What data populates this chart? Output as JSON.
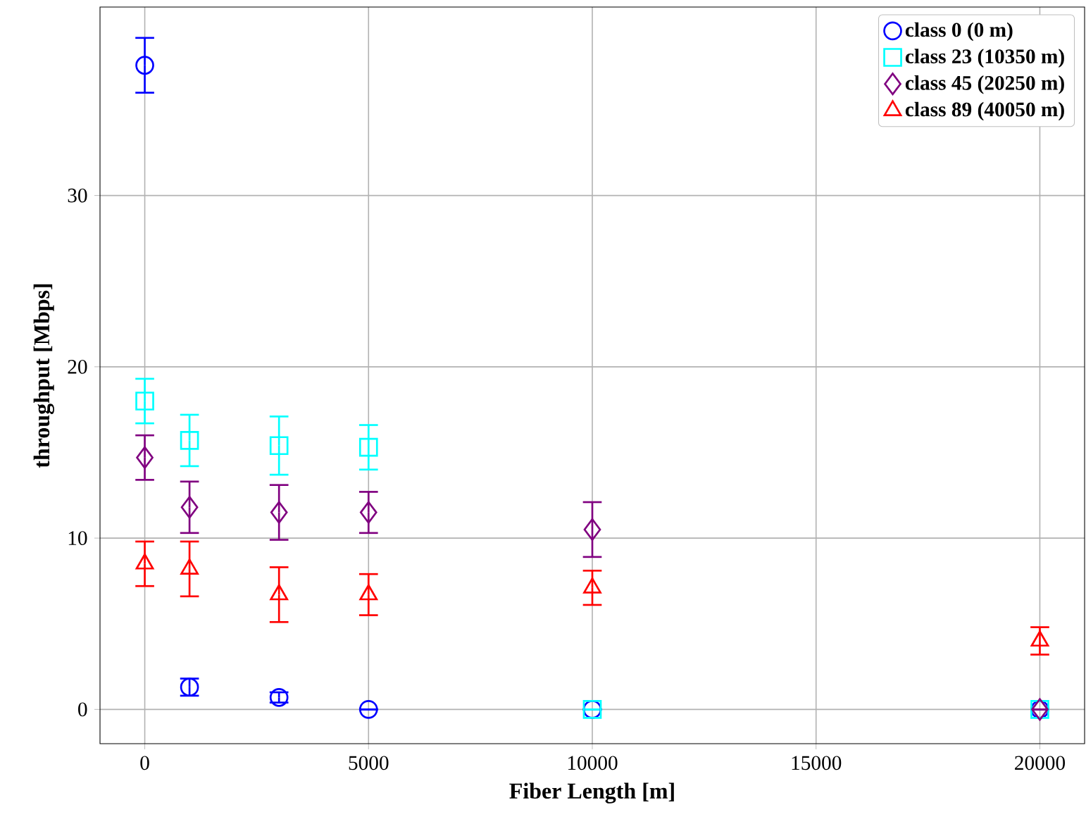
{
  "chart_data": {
    "type": "scatter",
    "xlabel": "Fiber Length [m]",
    "ylabel": "throughput [Mbps]",
    "x": [
      0,
      1000,
      3000,
      5000,
      10000,
      20000
    ],
    "xlim": [
      -1000,
      21000
    ],
    "ylim": [
      -2,
      41
    ],
    "xticks": [
      0,
      5000,
      10000,
      15000,
      20000
    ],
    "yticks": [
      0,
      10,
      20,
      30
    ],
    "grid": true,
    "legend": "top right",
    "series": [
      {
        "name": "class 0 (0 m)",
        "color": "#0000ff",
        "marker": "circle",
        "values": [
          37.6,
          1.3,
          0.7,
          0,
          0,
          0
        ],
        "errors": [
          1.6,
          0.5,
          0.3,
          null,
          null,
          null
        ]
      },
      {
        "name": "class 23 (10350 m)",
        "color": "#00ffff",
        "marker": "square",
        "values": [
          18.0,
          15.7,
          15.4,
          15.3,
          0,
          0
        ],
        "errors": [
          1.3,
          1.5,
          1.7,
          1.3,
          null,
          null
        ]
      },
      {
        "name": "class 45 (20250 m)",
        "color": "#800080",
        "marker": "diamond",
        "values": [
          14.7,
          11.8,
          11.5,
          11.5,
          10.5,
          0
        ],
        "errors": [
          1.3,
          1.5,
          1.6,
          1.2,
          1.6,
          null
        ]
      },
      {
        "name": "class 89 (40050 m)",
        "color": "#ff0000",
        "marker": "triangle",
        "values": [
          8.5,
          8.2,
          6.7,
          6.7,
          7.1,
          4.0
        ],
        "errors": [
          1.3,
          1.6,
          1.6,
          1.2,
          1.0,
          0.8
        ]
      }
    ]
  }
}
